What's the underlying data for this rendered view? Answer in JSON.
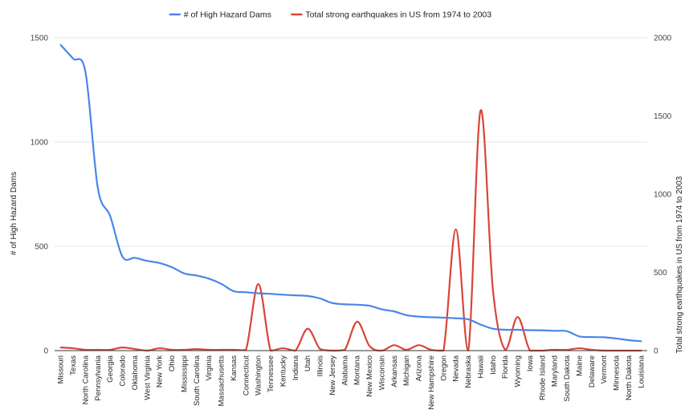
{
  "chart_data": {
    "type": "line",
    "title": "",
    "categories": [
      "Missouri",
      "Texas",
      "North Carolina",
      "Pennsylvania",
      "Georgia",
      "Colorado",
      "Oklahoma",
      "West Virginia",
      "New York",
      "Ohio",
      "Mississippi",
      "South Carolina",
      "Virginia",
      "Massachusetts",
      "Kansas",
      "Connecticut",
      "Washington",
      "Tennessee",
      "Kentucky",
      "Indiana",
      "Utah",
      "Illinois",
      "New Jersey",
      "Alabama",
      "Montana",
      "New Mexico",
      "Wisconsin",
      "Arkansas",
      "Michigan",
      "Arizona",
      "New Hampshire",
      "Oregon",
      "Nevada",
      "Nebraska",
      "Hawaii",
      "Idaho",
      "Florida",
      "Wyoming",
      "Iowa",
      "Rhode Island",
      "Maryland",
      "South Dakota",
      "Maine",
      "Delaware",
      "Vermont",
      "Minnesota",
      "North Dakota",
      "Louisiana"
    ],
    "xlabel": "",
    "ylabel": "# of High Hazard Dams",
    "y2label": "Total strong earthquakes in US from 1974 to 2003",
    "ylim": [
      0,
      1500
    ],
    "y2lim": [
      0,
      2000
    ],
    "yticks": [
      "0",
      "500",
      "1000",
      "1500"
    ],
    "y2ticks": [
      "0",
      "500",
      "1000",
      "1500",
      "2000"
    ],
    "grid": true,
    "legend_position": "top",
    "series": [
      {
        "name": "# of High Hazard Dams",
        "axis": "left",
        "color": "#4a86e8",
        "values": [
          1465,
          1400,
          1335,
          780,
          645,
          450,
          445,
          430,
          420,
          400,
          370,
          360,
          345,
          320,
          285,
          280,
          275,
          272,
          268,
          265,
          262,
          250,
          228,
          222,
          220,
          215,
          198,
          188,
          170,
          163,
          160,
          158,
          155,
          150,
          125,
          105,
          100,
          100,
          98,
          97,
          95,
          93,
          68,
          65,
          64,
          58,
          50,
          45
        ]
      },
      {
        "name": "Total strong earthquakes in US from 1974 to 2003",
        "axis": "right",
        "color": "#db4437",
        "values": [
          20,
          15,
          5,
          5,
          5,
          20,
          10,
          0,
          15,
          5,
          5,
          10,
          5,
          5,
          5,
          5,
          425,
          0,
          15,
          0,
          140,
          10,
          0,
          5,
          185,
          30,
          0,
          35,
          5,
          35,
          5,
          0,
          775,
          0,
          1535,
          390,
          5,
          215,
          0,
          0,
          5,
          5,
          15,
          5,
          0,
          0,
          0,
          0
        ]
      }
    ]
  }
}
